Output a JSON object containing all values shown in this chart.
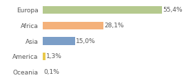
{
  "categories": [
    "Oceania",
    "America",
    "Asia",
    "Africa",
    "Europa"
  ],
  "values": [
    0.1,
    1.3,
    15.0,
    28.1,
    55.4
  ],
  "labels": [
    "0,1%",
    "1,3%",
    "15,0%",
    "28,1%",
    "55,4%"
  ],
  "colors": [
    "#e8c84a",
    "#e8c84a",
    "#7b9ec7",
    "#f4b17a",
    "#b5c98e"
  ],
  "xlim": [
    0,
    68
  ],
  "background_color": "#ffffff",
  "bar_height": 0.5,
  "label_fontsize": 6.5,
  "tick_fontsize": 6.5,
  "figwidth": 2.8,
  "figheight": 1.2,
  "dpi": 100
}
